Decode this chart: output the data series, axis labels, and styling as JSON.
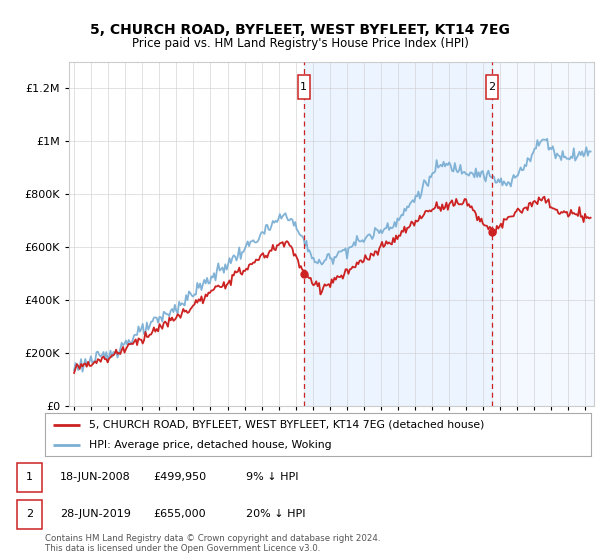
{
  "title1": "5, CHURCH ROAD, BYFLEET, WEST BYFLEET, KT14 7EG",
  "title2": "Price paid vs. HM Land Registry's House Price Index (HPI)",
  "ylabel_ticks": [
    "£0",
    "£200K",
    "£400K",
    "£600K",
    "£800K",
    "£1M",
    "£1.2M"
  ],
  "ytick_values": [
    0,
    200000,
    400000,
    600000,
    800000,
    1000000,
    1200000
  ],
  "ylim": [
    0,
    1300000
  ],
  "xlim_start": 1994.7,
  "xlim_end": 2025.5,
  "hpi_color": "#7bafd4",
  "sale_color": "#cc2222",
  "annotation_bg": "#ddeeff",
  "annotation_line_color": "#cc2222",
  "sale1_x": 2008.46,
  "sale1_y": 499950,
  "sale2_x": 2019.49,
  "sale2_y": 655000,
  "legend_sale_label": "5, CHURCH ROAD, BYFLEET, WEST BYFLEET, KT14 7EG (detached house)",
  "legend_hpi_label": "HPI: Average price, detached house, Woking",
  "sale1_date": "18-JUN-2008",
  "sale1_price": "£499,950",
  "sale1_hpi": "9% ↓ HPI",
  "sale2_date": "28-JUN-2019",
  "sale2_price": "£655,000",
  "sale2_hpi": "20% ↓ HPI",
  "footnote": "Contains HM Land Registry data © Crown copyright and database right 2024.\nThis data is licensed under the Open Government Licence v3.0.",
  "grid_color": "#cccccc",
  "bg_color": "#ffffff",
  "plot_bg": "#ffffff"
}
